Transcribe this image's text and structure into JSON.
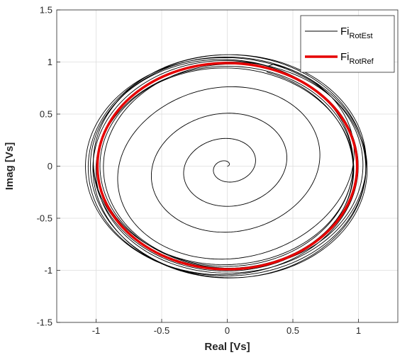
{
  "chart_data": {
    "type": "line",
    "title": "",
    "xlabel": "Real [Vs]",
    "ylabel": "Imag [Vs]",
    "xlim": [
      -1.3,
      1.3
    ],
    "ylim": [
      -1.5,
      1.5
    ],
    "xticks": [
      -1,
      -0.5,
      0,
      0.5,
      1
    ],
    "xtick_labels": [
      "-1",
      "-0.5",
      "0",
      "0.5",
      "1"
    ],
    "yticks": [
      -1.5,
      -1,
      -0.5,
      0,
      0.5,
      1,
      1.5
    ],
    "ytick_labels": [
      "-1.5",
      "-1",
      "-0.5",
      "0",
      "0.5",
      "1",
      "1.5"
    ],
    "grid": true,
    "legend_position": "top-right",
    "series": [
      {
        "name": "Fi_RotEst",
        "legend_main": "Fi",
        "legend_sub": "RotEst",
        "color": "#000000",
        "kind": "spiral",
        "start": [
          0,
          0
        ],
        "final_radius_range": [
          0.95,
          1.07
        ]
      },
      {
        "name": "Fi_RotRef",
        "legend_main": "Fi",
        "legend_sub": "RotRef",
        "color": "#e60000",
        "kind": "circle",
        "center": [
          0,
          0
        ],
        "radius": 0.99
      }
    ]
  }
}
